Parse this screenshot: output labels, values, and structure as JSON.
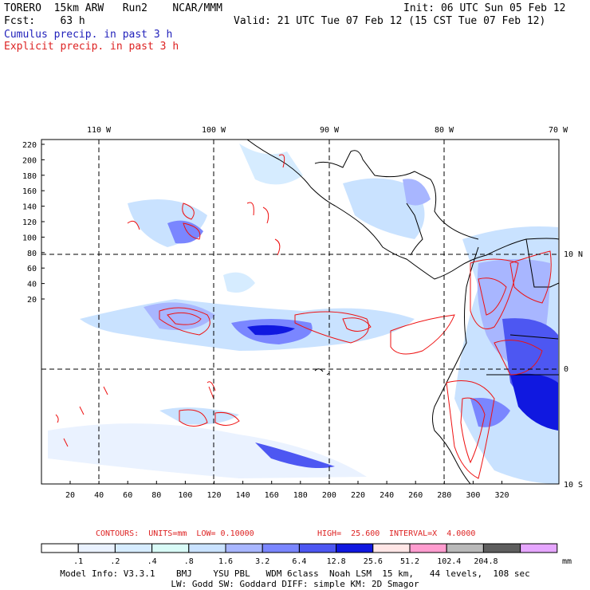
{
  "header": {
    "model": "TORERO  15km ARW   Run2    NCAR/MMM",
    "init": "Init: 06 UTC Sun 05 Feb 12",
    "fcst_label": "Fcst:    63 h",
    "valid": "Valid: 21 UTC Tue 07 Feb 12 (15 CST Tue 07 Feb 12)",
    "field1": "Cumulus precip. in past 3 h",
    "field2": "Explicit precip. in past 3 h"
  },
  "map": {
    "lon_labels": [
      "110 W",
      "100 W",
      "90 W",
      "80 W",
      "70 W"
    ],
    "lat_labels": [
      "10 N",
      "0",
      "10 S"
    ],
    "y_ticks": [
      "220",
      "200",
      "180",
      "160",
      "140",
      "120",
      "100",
      "80",
      "60",
      "40",
      "20"
    ],
    "x_ticks": [
      "20",
      "40",
      "60",
      "80",
      "100",
      "120",
      "140",
      "160",
      "180",
      "200",
      "220",
      "240",
      "260",
      "280",
      "300",
      "320"
    ]
  },
  "contours": {
    "units": "CONTOURS:  UNITS=mm  LOW= 0.10000",
    "high": "HIGH=  25.600",
    "interval": "INTERVAL=X  4.0000"
  },
  "colorbar": {
    "labels": [
      ".1",
      ".2",
      ".4",
      ".8",
      "1.6",
      "3.2",
      "6.4",
      "12.8",
      "25.6",
      "51.2",
      "102.4",
      "204.8"
    ],
    "unit": "mm",
    "colors": [
      "#ffffff",
      "#eaf2ff",
      "#d6ecff",
      "#d9fbf7",
      "#c9e2ff",
      "#a8b6ff",
      "#7a86ff",
      "#4d57f2",
      "#1018e0",
      "#ffe6e6",
      "#ff9ccf",
      "#b9b9b9",
      "#5e5e5e",
      "#e6a6ff"
    ]
  },
  "footer": {
    "line1": "Model Info: V3.3.1    BMJ    YSU PBL   WDM 6class  Noah LSM  15 km,   44 levels,  108 sec",
    "line2": "LW: Godd SW: Goddard DIFF: simple KM: 2D Smagor"
  }
}
